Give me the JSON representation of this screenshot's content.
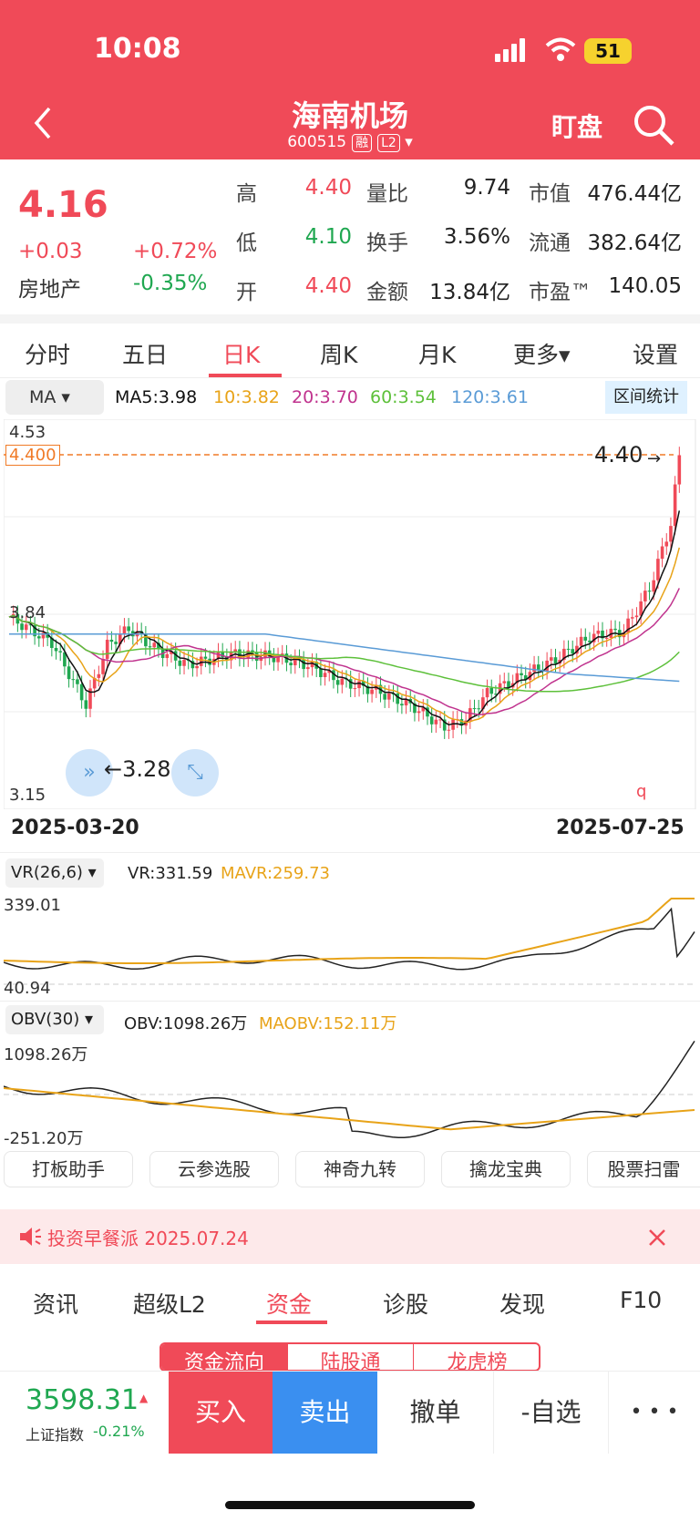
{
  "status": {
    "time": "10:08",
    "battery": "51"
  },
  "header": {
    "title": "海南机场",
    "code": "600515",
    "badge_margin": "融",
    "badge_level": "L2",
    "watch_label": "盯盘"
  },
  "quote": {
    "price": "4.16",
    "change": "+0.03",
    "change_pct": "+0.72%",
    "sector": "房地产",
    "sector_pct": "-0.35%",
    "rows": [
      {
        "l1": "高",
        "v1": "4.40",
        "l2": "量比",
        "v2": "9.74",
        "l3": "市值",
        "v3": "476.44亿"
      },
      {
        "l1": "低",
        "v1": "4.10",
        "l2": "换手",
        "v2": "3.56%",
        "l3": "流通",
        "v3": "382.64亿"
      },
      {
        "l1": "开",
        "v1": "4.40",
        "l2": "金额",
        "v2": "13.84亿",
        "l3": "市盈™",
        "v3": "140.05"
      }
    ],
    "colors": {
      "up": "#f04a58",
      "down": "#1fa750"
    }
  },
  "tabs": [
    "分时",
    "五日",
    "日K",
    "周K",
    "月K",
    "更多▾",
    "设置"
  ],
  "active_tab": "日K",
  "ma": {
    "selector": "MA",
    "ma5": "MA5:3.98",
    "ma10": "10:3.82",
    "ma20": "20:3.70",
    "ma60": "60:3.54",
    "ma120": "120:3.61",
    "interval_btn": "区间统计"
  },
  "kchart": {
    "y_top": "4.53",
    "y_mid": "3.84",
    "y_bot": "3.15",
    "price_line_label": "4.400",
    "high_marker": "4.40",
    "low_marker": "3.28",
    "date_start": "2025-03-20",
    "date_end": "2025-07-25",
    "q_label": "q"
  },
  "vr": {
    "selector": "VR(26,6)",
    "vr": "VR:331.59",
    "mavr": "MAVR:259.73",
    "y_top": "339.01",
    "y_bot": "40.94"
  },
  "obv": {
    "selector": "OBV(30)",
    "obv": "OBV:1098.26万",
    "maobv": "MAOBV:152.11万",
    "y_top": "1098.26万",
    "y_bot": "-251.20万"
  },
  "tools": [
    "打板助手",
    "云参选股",
    "神奇九转",
    "擒龙宝典",
    "股票扫雷"
  ],
  "news": {
    "text": "投资早餐派 2025.07.24"
  },
  "bottom_tabs": [
    "资讯",
    "超级L2",
    "资金",
    "诊股",
    "发现",
    "F10"
  ],
  "active_bottom_tab": "资金",
  "sub_tabs": [
    "资金流向",
    "陆股通",
    "龙虎榜"
  ],
  "index": {
    "value": "3598.31",
    "name": "上证指数",
    "pct": "-0.21%"
  },
  "actions": {
    "buy": "买入",
    "sell": "卖出",
    "cancel": "撤单",
    "watch": "-自选",
    "more": "• • •"
  },
  "chart_data": {
    "type": "candlestick",
    "x_range": [
      "2025-03-20",
      "2025-07-25"
    ],
    "ylim": [
      3.15,
      4.53
    ],
    "y_ticks": [
      4.53,
      3.84,
      3.15
    ],
    "price_line": 4.4,
    "period_low": 3.28,
    "period_high": 4.4,
    "series": [
      {
        "name": "MA5",
        "last": 3.98
      },
      {
        "name": "MA10",
        "last": 3.82
      },
      {
        "name": "MA20",
        "last": 3.7
      },
      {
        "name": "MA60",
        "last": 3.54
      },
      {
        "name": "MA120",
        "last": 3.61
      }
    ]
  }
}
